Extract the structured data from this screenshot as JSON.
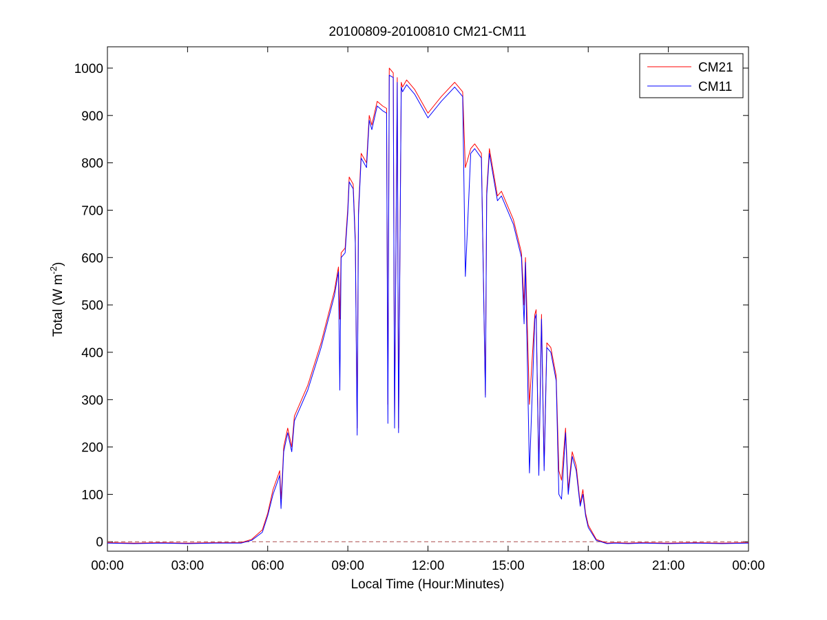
{
  "chart_data": {
    "type": "line",
    "title": "20100809-20100810 CM21-CM11",
    "xlabel": "Local Time (Hour:Minutes)",
    "ylabel": {
      "main": "Total (W m",
      "sup": "-2",
      "close": ")"
    },
    "xlim_hours": [
      0,
      24
    ],
    "ylim": [
      -20,
      1045
    ],
    "x_ticks": [
      "00:00",
      "03:00",
      "06:00",
      "09:00",
      "12:00",
      "15:00",
      "18:00",
      "21:00",
      "00:00"
    ],
    "y_ticks": [
      0,
      100,
      200,
      300,
      400,
      500,
      600,
      700,
      800,
      900,
      1000
    ],
    "grid": false,
    "legend_position": "top-right",
    "reference_line": {
      "y": 0,
      "style": "dashed",
      "color": "#aa4a4a"
    },
    "series": [
      {
        "name": "CM21",
        "color": "#ff0000",
        "x_hours": [
          0,
          1,
          2,
          3,
          4,
          5,
          5.4,
          5.8,
          6.0,
          6.2,
          6.45,
          6.5,
          6.55,
          6.6,
          6.75,
          6.9,
          7.0,
          7.5,
          8.0,
          8.5,
          8.65,
          8.7,
          8.75,
          8.9,
          9.0,
          9.05,
          9.2,
          9.28,
          9.35,
          9.4,
          9.5,
          9.7,
          9.8,
          9.9,
          10.1,
          10.3,
          10.45,
          10.5,
          10.55,
          10.7,
          10.75,
          10.85,
          10.9,
          11.0,
          11.05,
          11.2,
          11.5,
          12.0,
          12.5,
          13.0,
          13.3,
          13.4,
          13.6,
          13.75,
          14.0,
          14.15,
          14.2,
          14.3,
          14.6,
          14.75,
          14.9,
          15.2,
          15.5,
          15.6,
          15.65,
          15.8,
          16.0,
          16.05,
          16.15,
          16.25,
          16.35,
          16.45,
          16.6,
          16.8,
          16.9,
          17.0,
          17.15,
          17.25,
          17.4,
          17.55,
          17.7,
          17.8,
          17.9,
          18.0,
          18.3,
          18.7,
          19.0,
          19.5,
          20,
          21,
          22,
          23,
          24
        ],
        "y": [
          -2,
          -3,
          -2,
          -3,
          -2,
          -2,
          5,
          25,
          60,
          110,
          150,
          90,
          140,
          200,
          240,
          200,
          265,
          330,
          420,
          530,
          580,
          470,
          610,
          620,
          705,
          770,
          755,
          640,
          240,
          700,
          820,
          800,
          900,
          880,
          930,
          920,
          915,
          290,
          1000,
          990,
          260,
          980,
          240,
          970,
          960,
          975,
          955,
          905,
          940,
          970,
          950,
          790,
          830,
          840,
          820,
          310,
          740,
          830,
          730,
          740,
          720,
          680,
          610,
          500,
          600,
          290,
          480,
          490,
          150,
          480,
          160,
          420,
          410,
          350,
          150,
          130,
          240,
          110,
          190,
          160,
          80,
          110,
          60,
          35,
          5,
          -3,
          -2,
          -3,
          -2,
          -3,
          -2,
          -3,
          -2
        ]
      },
      {
        "name": "CM11",
        "color": "#0000ff",
        "x_hours": [
          0,
          1,
          2,
          3,
          4,
          5,
          5.4,
          5.8,
          6.0,
          6.2,
          6.45,
          6.5,
          6.55,
          6.6,
          6.75,
          6.9,
          7.0,
          7.5,
          8.0,
          8.5,
          8.65,
          8.7,
          8.75,
          8.9,
          9.0,
          9.05,
          9.2,
          9.28,
          9.35,
          9.4,
          9.5,
          9.7,
          9.8,
          9.9,
          10.1,
          10.3,
          10.45,
          10.5,
          10.55,
          10.7,
          10.75,
          10.85,
          10.9,
          11.0,
          11.05,
          11.2,
          11.5,
          12.0,
          12.5,
          13.0,
          13.3,
          13.4,
          13.6,
          13.75,
          14.0,
          14.15,
          14.2,
          14.3,
          14.6,
          14.75,
          14.9,
          15.2,
          15.5,
          15.6,
          15.65,
          15.8,
          16.0,
          16.05,
          16.15,
          16.25,
          16.35,
          16.45,
          16.6,
          16.8,
          16.9,
          17.0,
          17.15,
          17.25,
          17.4,
          17.55,
          17.7,
          17.8,
          17.9,
          18.0,
          18.3,
          18.7,
          19.0,
          19.5,
          20,
          21,
          22,
          23,
          24
        ],
        "y": [
          -3,
          -4,
          -3,
          -4,
          -3,
          -3,
          3,
          20,
          55,
          100,
          140,
          70,
          130,
          190,
          230,
          190,
          255,
          320,
          410,
          520,
          570,
          320,
          600,
          610,
          695,
          760,
          745,
          630,
          225,
          690,
          810,
          790,
          890,
          870,
          920,
          910,
          905,
          250,
          985,
          980,
          240,
          970,
          230,
          960,
          950,
          965,
          945,
          895,
          930,
          960,
          940,
          560,
          820,
          830,
          810,
          305,
          730,
          820,
          720,
          730,
          710,
          670,
          600,
          460,
          590,
          145,
          470,
          480,
          140,
          470,
          150,
          410,
          400,
          340,
          100,
          90,
          230,
          100,
          180,
          150,
          75,
          100,
          55,
          30,
          3,
          -4,
          -3,
          -4,
          -3,
          -4,
          -3,
          -4,
          -3
        ]
      }
    ]
  }
}
